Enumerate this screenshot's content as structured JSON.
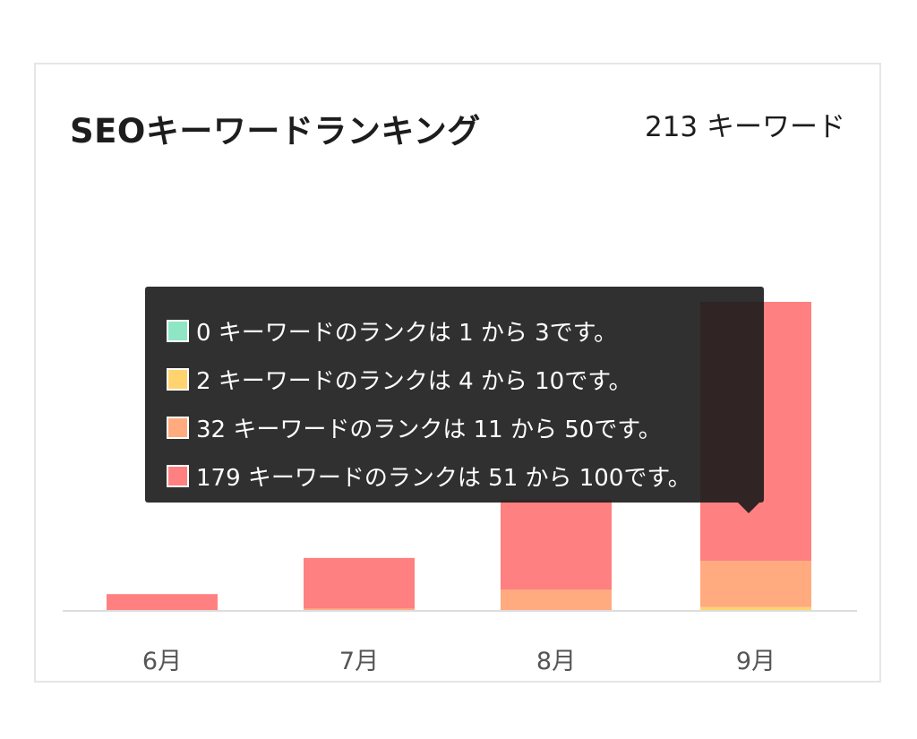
{
  "header": {
    "title": "SEOキーワードランキング",
    "total": "213 キーワード"
  },
  "tooltip": {
    "rows": [
      {
        "text": "0 キーワードのランクは 1 から 3です。",
        "color": "#8ee6c4"
      },
      {
        "text": "2 キーワードのランクは 4 から 10です。",
        "color": "#ffd36e"
      },
      {
        "text": "32 キーワードのランクは 11 から 50です。",
        "color": "#ffab7f"
      },
      {
        "text": "179 キーワードのランクは 51 から 100です。",
        "color": "#ff8080"
      }
    ]
  },
  "chart_data": {
    "type": "bar",
    "stacked": true,
    "categories": [
      "6月",
      "7月",
      "8月",
      "9月"
    ],
    "series": [
      {
        "name": "1 から 3",
        "color": "#8ee6c4",
        "values": [
          0,
          0,
          0,
          0
        ]
      },
      {
        "name": "4 から 10",
        "color": "#ffd36e",
        "values": [
          0,
          0,
          0,
          2
        ]
      },
      {
        "name": "11 から 50",
        "color": "#ffab7f",
        "values": [
          0,
          1,
          14,
          32
        ]
      },
      {
        "name": "51 から 100",
        "color": "#ff8080",
        "values": [
          11,
          35,
          62,
          179
        ]
      }
    ],
    "ylim": [
      0,
      213
    ],
    "grid": false,
    "legend": "none"
  }
}
